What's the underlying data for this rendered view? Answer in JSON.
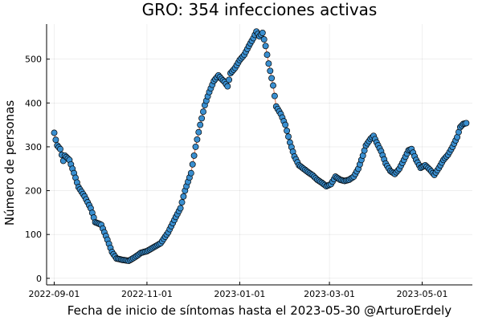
{
  "chart_data": {
    "type": "scatter",
    "title": "GRO:  354 infecciones activas",
    "xlabel": "Fecha de inicio de síntomas hasta el 2023-05-30 @ArturoErdely",
    "ylabel": "Número de personas",
    "x_ticks": [
      "2022-09-01",
      "2022-11-01",
      "2023-01-01",
      "2023-03-01",
      "2023-05-01"
    ],
    "y_ticks": [
      0,
      100,
      200,
      300,
      400,
      500
    ],
    "xlim": [
      "2022-08-27",
      "2023-06-03"
    ],
    "ylim": [
      -15,
      580
    ],
    "grid": true,
    "legend": "none",
    "colors": {
      "marker_fill": "#3a8fd0",
      "marker_stroke": "#000000",
      "line": "#e26f46"
    },
    "series": [
      {
        "x_start": "2022-09-01",
        "x_end": "2023-05-30",
        "step_days": 1,
        "keypoints": [
          [
            "2022-09-01",
            332
          ],
          [
            "2022-09-02",
            316
          ],
          [
            "2022-09-03",
            303
          ],
          [
            "2022-09-05",
            295
          ],
          [
            "2022-09-07",
            268
          ],
          [
            "2022-09-08",
            280
          ],
          [
            "2022-09-11",
            270
          ],
          [
            "2022-09-14",
            240
          ],
          [
            "2022-09-17",
            208
          ],
          [
            "2022-09-21",
            187
          ],
          [
            "2022-09-25",
            160
          ],
          [
            "2022-09-28",
            128
          ],
          [
            "2022-10-02",
            122
          ],
          [
            "2022-10-06",
            88
          ],
          [
            "2022-10-09",
            60
          ],
          [
            "2022-10-12",
            45
          ],
          [
            "2022-10-16",
            42
          ],
          [
            "2022-10-20",
            40
          ],
          [
            "2022-10-24",
            48
          ],
          [
            "2022-10-28",
            58
          ],
          [
            "2022-11-01",
            62
          ],
          [
            "2022-11-06",
            72
          ],
          [
            "2022-11-10",
            80
          ],
          [
            "2022-11-15",
            105
          ],
          [
            "2022-11-20",
            140
          ],
          [
            "2022-11-23",
            160
          ],
          [
            "2022-11-26",
            200
          ],
          [
            "2022-11-30",
            240
          ],
          [
            "2022-12-03",
            300
          ],
          [
            "2022-12-06",
            350
          ],
          [
            "2022-12-09",
            395
          ],
          [
            "2022-12-12",
            425
          ],
          [
            "2022-12-15",
            450
          ],
          [
            "2022-12-18",
            463
          ],
          [
            "2022-12-20",
            455
          ],
          [
            "2022-12-22",
            448
          ],
          [
            "2022-12-24",
            438
          ],
          [
            "2022-12-26",
            468
          ],
          [
            "2022-12-29",
            480
          ],
          [
            "2023-01-01",
            498
          ],
          [
            "2023-01-04",
            510
          ],
          [
            "2023-01-07",
            530
          ],
          [
            "2023-01-10",
            548
          ],
          [
            "2023-01-12",
            563
          ],
          [
            "2023-01-14",
            552
          ],
          [
            "2023-01-16",
            560
          ],
          [
            "2023-01-18",
            530
          ],
          [
            "2023-01-20",
            490
          ],
          [
            "2023-01-23",
            440
          ],
          [
            "2023-01-25",
            392
          ],
          [
            "2023-01-28",
            375
          ],
          [
            "2023-01-31",
            350
          ],
          [
            "2023-02-03",
            310
          ],
          [
            "2023-02-06",
            278
          ],
          [
            "2023-02-09",
            258
          ],
          [
            "2023-02-12",
            250
          ],
          [
            "2023-02-15",
            242
          ],
          [
            "2023-02-18",
            235
          ],
          [
            "2023-02-21",
            225
          ],
          [
            "2023-02-24",
            218
          ],
          [
            "2023-02-27",
            210
          ],
          [
            "2023-03-02",
            215
          ],
          [
            "2023-03-05",
            232
          ],
          [
            "2023-03-08",
            225
          ],
          [
            "2023-03-11",
            222
          ],
          [
            "2023-03-14",
            225
          ],
          [
            "2023-03-17",
            232
          ],
          [
            "2023-03-20",
            250
          ],
          [
            "2023-03-23",
            280
          ],
          [
            "2023-03-25",
            303
          ],
          [
            "2023-03-28",
            318
          ],
          [
            "2023-03-30",
            325
          ],
          [
            "2023-04-01",
            310
          ],
          [
            "2023-04-04",
            290
          ],
          [
            "2023-04-07",
            262
          ],
          [
            "2023-04-10",
            245
          ],
          [
            "2023-04-13",
            238
          ],
          [
            "2023-04-16",
            250
          ],
          [
            "2023-04-19",
            270
          ],
          [
            "2023-04-22",
            292
          ],
          [
            "2023-04-24",
            295
          ],
          [
            "2023-04-27",
            270
          ],
          [
            "2023-04-30",
            252
          ],
          [
            "2023-05-03",
            258
          ],
          [
            "2023-05-06",
            248
          ],
          [
            "2023-05-09",
            236
          ],
          [
            "2023-05-12",
            252
          ],
          [
            "2023-05-15",
            270
          ],
          [
            "2023-05-18",
            282
          ],
          [
            "2023-05-21",
            300
          ],
          [
            "2023-05-24",
            322
          ],
          [
            "2023-05-26",
            345
          ],
          [
            "2023-05-28",
            352
          ],
          [
            "2023-05-30",
            354
          ]
        ]
      }
    ]
  }
}
